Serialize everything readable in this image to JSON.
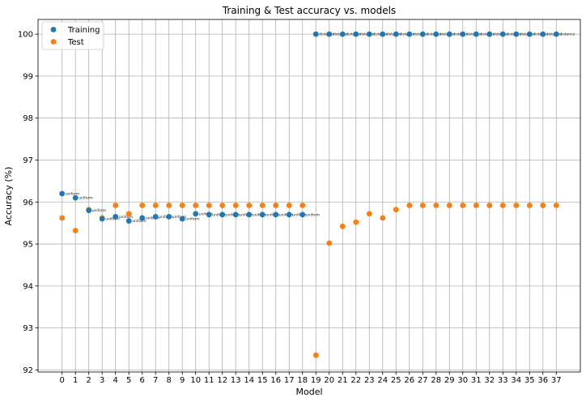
{
  "chart_data": {
    "type": "scatter",
    "title": "Training & Test accuracy vs. models",
    "xlabel": "Model",
    "ylabel": "Accuracy (%)",
    "xlim": [
      -1.8,
      38.8
    ],
    "ylim": [
      91.95,
      100.35
    ],
    "xticks": [
      0,
      1,
      2,
      3,
      4,
      5,
      6,
      7,
      8,
      9,
      10,
      11,
      12,
      13,
      14,
      15,
      16,
      17,
      18,
      19,
      20,
      21,
      22,
      23,
      24,
      25,
      26,
      27,
      28,
      29,
      30,
      31,
      32,
      33,
      34,
      35,
      36,
      37
    ],
    "yticks": [
      92,
      93,
      94,
      95,
      96,
      97,
      98,
      99,
      100
    ],
    "grid": true,
    "legend_position": "top-left",
    "x": [
      0,
      1,
      2,
      3,
      4,
      5,
      6,
      7,
      8,
      9,
      10,
      11,
      12,
      13,
      14,
      15,
      16,
      17,
      18,
      19,
      20,
      21,
      22,
      23,
      24,
      25,
      26,
      27,
      28,
      29,
      30,
      31,
      32,
      33,
      34,
      35,
      36,
      37
    ],
    "series": [
      {
        "name": "Training",
        "color": "#1f77b4",
        "values": [
          96.2,
          96.1,
          95.8,
          95.6,
          95.65,
          95.55,
          95.62,
          95.65,
          95.65,
          95.6,
          95.72,
          95.7,
          95.7,
          95.7,
          95.7,
          95.7,
          95.7,
          95.7,
          95.7,
          100,
          100,
          100,
          100,
          100,
          100,
          100,
          100,
          100,
          100,
          100,
          100,
          100,
          100,
          100,
          100,
          100,
          100,
          100
        ]
      },
      {
        "name": "Test",
        "color": "#ff7f0e",
        "values": [
          95.62,
          95.32,
          95.82,
          95.62,
          95.92,
          95.72,
          95.92,
          95.92,
          95.92,
          95.92,
          95.92,
          95.92,
          95.92,
          95.92,
          95.92,
          95.92,
          95.92,
          95.92,
          95.92,
          92.35,
          95.02,
          95.42,
          95.52,
          95.72,
          95.62,
          95.82,
          95.92,
          95.92,
          95.92,
          95.92,
          95.92,
          95.92,
          95.92,
          95.92,
          95.92,
          95.92,
          95.92,
          95.92
        ]
      }
    ],
    "point_labels": [
      "uniform",
      "uniform",
      "uniform",
      "uniform",
      "uniform",
      "uniform",
      "uniform",
      "uniform",
      "uniform",
      "uniform",
      "uniform",
      "uniform",
      "uniform",
      "uniform",
      "uniform",
      "uniform",
      "uniform",
      "uniform",
      "uniform",
      "distance",
      "distance",
      "distance",
      "distance",
      "distance",
      "distance",
      "distance",
      "distance",
      "distance",
      "distance",
      "distance",
      "distance",
      "distance",
      "distance",
      "distance",
      "distance",
      "distance",
      "distance",
      "distance"
    ]
  }
}
